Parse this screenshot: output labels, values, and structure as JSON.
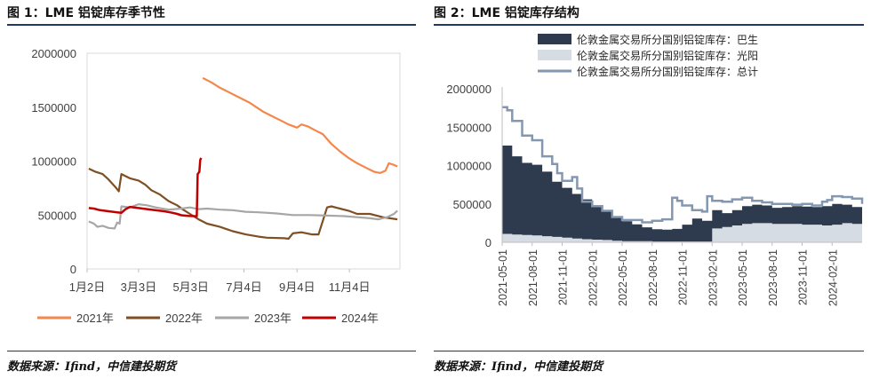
{
  "chart_data": [
    {
      "type": "line",
      "title": "图 1：LME 铝锭库存季节性",
      "source": "数据来源：Ifind，中信建投期货",
      "x_tick_labels": [
        "1月2日",
        "3月3日",
        "5月3日",
        "7月4日",
        "9月4日",
        "11月4日"
      ],
      "x_tick_days": [
        0,
        60,
        121,
        183,
        245,
        306
      ],
      "xlim": [
        0,
        365
      ],
      "ylim": [
        0,
        2000000
      ],
      "y_tick_labels": [
        "0",
        "500000",
        "1000000",
        "1500000",
        "2000000"
      ],
      "y_ticks": [
        0,
        500000,
        1000000,
        1500000,
        2000000
      ],
      "legend_position": "bottom",
      "series": [
        {
          "name": "2021年",
          "color": "#f4874b",
          "points": [
            [
              135,
              1770000
            ],
            [
              145,
              1730000
            ],
            [
              155,
              1680000
            ],
            [
              165,
              1640000
            ],
            [
              175,
              1600000
            ],
            [
              190,
              1540000
            ],
            [
              205,
              1460000
            ],
            [
              215,
              1420000
            ],
            [
              225,
              1380000
            ],
            [
              235,
              1340000
            ],
            [
              245,
              1310000
            ],
            [
              250,
              1340000
            ],
            [
              258,
              1320000
            ],
            [
              265,
              1290000
            ],
            [
              275,
              1250000
            ],
            [
              285,
              1160000
            ],
            [
              295,
              1090000
            ],
            [
              305,
              1030000
            ],
            [
              315,
              980000
            ],
            [
              325,
              940000
            ],
            [
              335,
              900000
            ],
            [
              342,
              890000
            ],
            [
              348,
              910000
            ],
            [
              352,
              980000
            ],
            [
              358,
              965000
            ],
            [
              362,
              950000
            ]
          ]
        },
        {
          "name": "2022年",
          "color": "#7f4f24",
          "points": [
            [
              2,
              930000
            ],
            [
              10,
              900000
            ],
            [
              18,
              880000
            ],
            [
              25,
              830000
            ],
            [
              33,
              760000
            ],
            [
              37,
              720000
            ],
            [
              40,
              880000
            ],
            [
              50,
              840000
            ],
            [
              60,
              820000
            ],
            [
              68,
              780000
            ],
            [
              75,
              730000
            ],
            [
              85,
              690000
            ],
            [
              95,
              630000
            ],
            [
              105,
              590000
            ],
            [
              112,
              550000
            ],
            [
              120,
              510000
            ],
            [
              130,
              460000
            ],
            [
              140,
              420000
            ],
            [
              155,
              390000
            ],
            [
              170,
              350000
            ],
            [
              185,
              320000
            ],
            [
              200,
              300000
            ],
            [
              210,
              290000
            ],
            [
              230,
              285000
            ],
            [
              235,
              280000
            ],
            [
              240,
              330000
            ],
            [
              250,
              340000
            ],
            [
              262,
              320000
            ],
            [
              270,
              320000
            ],
            [
              280,
              570000
            ],
            [
              285,
              580000
            ],
            [
              295,
              560000
            ],
            [
              305,
              540000
            ],
            [
              315,
              510000
            ],
            [
              330,
              510000
            ],
            [
              345,
              480000
            ],
            [
              362,
              460000
            ]
          ]
        },
        {
          "name": "2023年",
          "color": "#a6a6a6",
          "points": [
            [
              2,
              440000
            ],
            [
              8,
              420000
            ],
            [
              12,
              390000
            ],
            [
              18,
              400000
            ],
            [
              25,
              380000
            ],
            [
              32,
              375000
            ],
            [
              35,
              430000
            ],
            [
              38,
              420000
            ],
            [
              40,
              580000
            ],
            [
              50,
              570000
            ],
            [
              60,
              600000
            ],
            [
              70,
              590000
            ],
            [
              80,
              570000
            ],
            [
              95,
              550000
            ],
            [
              110,
              560000
            ],
            [
              120,
              570000
            ],
            [
              130,
              555000
            ],
            [
              140,
              560000
            ],
            [
              155,
              550000
            ],
            [
              170,
              545000
            ],
            [
              185,
              530000
            ],
            [
              200,
              525000
            ],
            [
              220,
              515000
            ],
            [
              240,
              500000
            ],
            [
              260,
              500000
            ],
            [
              280,
              495000
            ],
            [
              300,
              490000
            ],
            [
              315,
              480000
            ],
            [
              330,
              470000
            ],
            [
              340,
              460000
            ],
            [
              350,
              480000
            ],
            [
              358,
              510000
            ],
            [
              362,
              540000
            ]
          ]
        },
        {
          "name": "2024年",
          "color": "#c00000",
          "points": [
            [
              2,
              565000
            ],
            [
              8,
              560000
            ],
            [
              15,
              545000
            ],
            [
              25,
              535000
            ],
            [
              35,
              525000
            ],
            [
              40,
              520000
            ],
            [
              45,
              555000
            ],
            [
              50,
              575000
            ],
            [
              60,
              565000
            ],
            [
              75,
              550000
            ],
            [
              90,
              535000
            ],
            [
              100,
              520000
            ],
            [
              105,
              510000
            ],
            [
              110,
              498000
            ],
            [
              118,
              492000
            ],
            [
              125,
              490000
            ],
            [
              128,
              488000
            ],
            [
              129,
              880000
            ],
            [
              131,
              900000
            ],
            [
              132,
              1010000
            ],
            [
              133,
              1030000
            ]
          ]
        }
      ]
    },
    {
      "type": "area",
      "title": "图 2：LME 铝锭库存结构",
      "source": "数据来源：Ifind，中信建投期货",
      "x_tick_labels": [
        "2021-05-01",
        "2021-08-01",
        "2021-11-01",
        "2022-02-01",
        "2022-05-01",
        "2022-08-01",
        "2022-11-01",
        "2023-02-01",
        "2023-05-01",
        "2023-08-01",
        "2023-11-01",
        "2024-02-01"
      ],
      "xlim": [
        2021.333,
        2024.333
      ],
      "ylim": [
        0,
        2000000
      ],
      "y_tick_labels": [
        "0",
        "500000",
        "1000000",
        "1500000",
        "2000000"
      ],
      "y_ticks": [
        0,
        500000,
        1000000,
        1500000,
        2000000
      ],
      "legend_position": "top",
      "series": [
        {
          "name": "伦敦金属交易所分国别铝锭库存：巴生",
          "type": "area",
          "color": "#2e3b4e",
          "x": [
            2021.333,
            2021.417,
            2021.5,
            2021.583,
            2021.667,
            2021.75,
            2021.833,
            2021.917,
            2022.0,
            2022.083,
            2022.167,
            2022.25,
            2022.333,
            2022.417,
            2022.5,
            2022.583,
            2022.667,
            2022.75,
            2022.833,
            2022.917,
            2023.0,
            2023.083,
            2023.167,
            2023.25,
            2023.333,
            2023.417,
            2023.5,
            2023.583,
            2023.667,
            2023.75,
            2023.833,
            2023.917,
            2024.0,
            2024.083,
            2024.167,
            2024.25,
            2024.333
          ],
          "values": [
            1150000,
            1020000,
            940000,
            920000,
            840000,
            720000,
            650000,
            580000,
            520000,
            450000,
            380000,
            300000,
            260000,
            220000,
            180000,
            160000,
            155000,
            165000,
            220000,
            300000,
            270000,
            240000,
            180000,
            200000,
            230000,
            240000,
            230000,
            210000,
            220000,
            230000,
            235000,
            230000,
            250000,
            270000,
            240000,
            220000,
            230000
          ]
        },
        {
          "name": "伦敦金属交易所分国别铝锭库存：光阳",
          "type": "area",
          "color": "#d6dce4",
          "x": [
            2021.333,
            2021.417,
            2021.5,
            2021.583,
            2021.667,
            2021.75,
            2021.833,
            2021.917,
            2022.0,
            2022.083,
            2022.167,
            2022.25,
            2022.333,
            2022.417,
            2022.5,
            2022.583,
            2022.667,
            2022.75,
            2022.833,
            2022.917,
            2023.0,
            2023.083,
            2023.167,
            2023.25,
            2023.333,
            2023.417,
            2023.5,
            2023.583,
            2023.667,
            2023.75,
            2023.833,
            2023.917,
            2024.0,
            2024.083,
            2024.167,
            2024.25,
            2024.333
          ],
          "values": [
            110000,
            100000,
            95000,
            90000,
            80000,
            70000,
            60000,
            50000,
            40000,
            35000,
            30000,
            20000,
            15000,
            15000,
            15000,
            10000,
            10000,
            10000,
            10000,
            10000,
            10000,
            180000,
            200000,
            220000,
            240000,
            250000,
            250000,
            240000,
            240000,
            240000,
            230000,
            230000,
            220000,
            230000,
            250000,
            240000,
            230000
          ]
        },
        {
          "name": "伦敦金属交易所分国别铝锭库存：总计",
          "type": "step-line",
          "color": "#8497b0",
          "x": [
            2021.333,
            2021.375,
            2021.417,
            2021.5,
            2021.583,
            2021.667,
            2021.75,
            2021.792,
            2021.833,
            2021.917,
            2021.958,
            2022.0,
            2022.083,
            2022.167,
            2022.25,
            2022.333,
            2022.417,
            2022.5,
            2022.583,
            2022.667,
            2022.75,
            2022.792,
            2022.833,
            2022.917,
            2023.0,
            2023.042,
            2023.083,
            2023.167,
            2023.25,
            2023.333,
            2023.417,
            2023.5,
            2023.583,
            2023.667,
            2023.75,
            2023.833,
            2023.917,
            2024.0,
            2024.042,
            2024.083,
            2024.167,
            2024.25,
            2024.333
          ],
          "values": [
            1760000,
            1720000,
            1580000,
            1390000,
            1330000,
            1120000,
            1020000,
            900000,
            800000,
            850000,
            700000,
            530000,
            470000,
            410000,
            330000,
            290000,
            290000,
            260000,
            280000,
            300000,
            580000,
            540000,
            480000,
            420000,
            400000,
            600000,
            540000,
            530000,
            560000,
            580000,
            540000,
            520000,
            500000,
            500000,
            490000,
            500000,
            480000,
            530000,
            550000,
            600000,
            590000,
            570000,
            500000
          ]
        }
      ]
    }
  ]
}
